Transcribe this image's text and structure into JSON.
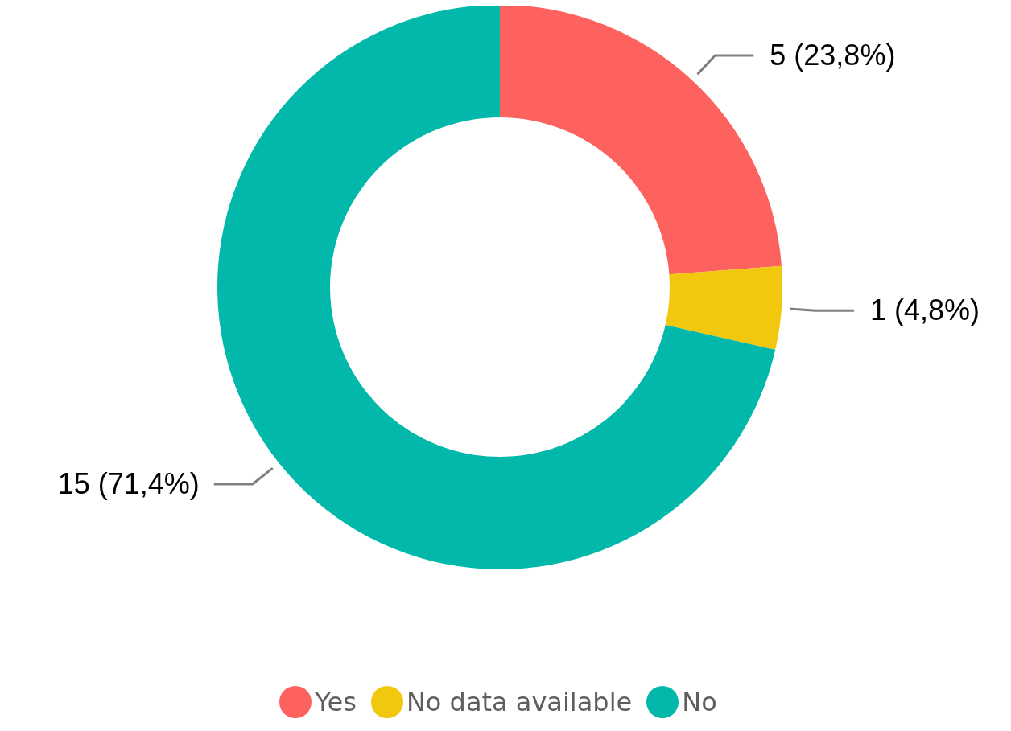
{
  "chart_data": {
    "type": "donut",
    "categories": [
      "Yes",
      "No data available",
      "No"
    ],
    "values": [
      5,
      1,
      15
    ],
    "colors": [
      "#fd625e",
      "#f2c80f",
      "#01b8aa"
    ],
    "value_labels": [
      "5 (23,8%)",
      "1 (4,8%)",
      "15 (71,4%)"
    ],
    "legend": "bottom"
  }
}
